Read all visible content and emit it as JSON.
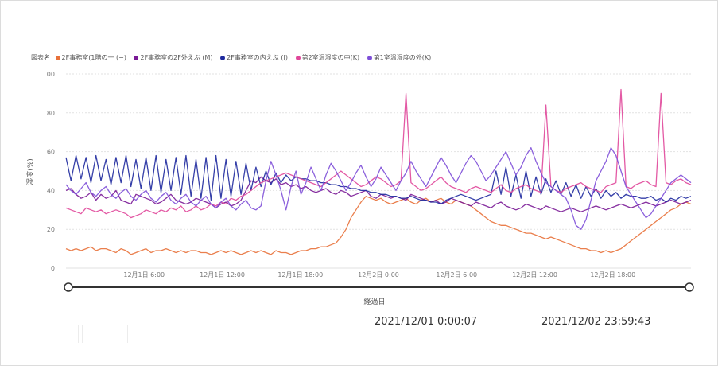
{
  "legend": {
    "title": "図表名",
    "items": [
      {
        "label": "2F事務室(1階の一 (−)",
        "color": "#e8713a"
      },
      {
        "label": "2F事務室の2F外えぶ (M)",
        "color": "#7a1a96"
      },
      {
        "label": "2F事務室の内えぶ (I)",
        "color": "#1f2a9e"
      },
      {
        "label": "第2室温湿度の中(K)",
        "color": "#e0479a"
      },
      {
        "label": "第1室温湿度の外(K)",
        "color": "#7e4fd8"
      }
    ]
  },
  "slider": {
    "start_label": "2021/12/01 0:00:07",
    "end_label": "2021/12/02 23:59:43",
    "axis_title": "経過日"
  },
  "chart_data": {
    "type": "line",
    "title": "",
    "xlabel": "経過日",
    "ylabel": "湿度(%)",
    "ylim": [
      0,
      100
    ],
    "y_ticks": [
      0,
      20,
      40,
      60,
      80,
      100
    ],
    "x_ticks": [
      "12月1日 6:00",
      "12月1日 12:00",
      "12月1日 18:00",
      "12月2日 0:00",
      "12月2日 6:00",
      "12月2日 12:00",
      "12月2日 18:00"
    ],
    "x_tick_positions_hours": [
      6,
      12,
      18,
      24,
      30,
      36,
      42
    ],
    "xlim_hours": [
      0,
      48
    ],
    "grid": true,
    "series": [
      {
        "name": "2F事務室(1階の一 (−)",
        "color": "#e8713a",
        "values": [
          10,
          9,
          10,
          9,
          10,
          11,
          9,
          10,
          10,
          9,
          8,
          10,
          9,
          7,
          8,
          9,
          10,
          8,
          9,
          9,
          10,
          9,
          8,
          9,
          8,
          9,
          9,
          8,
          8,
          7,
          8,
          9,
          8,
          9,
          8,
          7,
          8,
          9,
          8,
          9,
          8,
          7,
          9,
          8,
          8,
          7,
          8,
          9,
          9,
          10,
          10,
          11,
          11,
          12,
          13,
          16,
          20,
          26,
          30,
          34,
          37,
          36,
          35,
          36,
          34,
          33,
          34,
          35,
          36,
          34,
          33,
          35,
          36,
          34,
          35,
          36,
          34,
          33,
          35,
          34,
          33,
          32,
          30,
          28,
          26,
          24,
          23,
          22,
          22,
          21,
          20,
          19,
          18,
          18,
          17,
          16,
          15,
          16,
          15,
          14,
          13,
          12,
          11,
          10,
          10,
          9,
          9,
          8,
          9,
          8,
          9,
          10,
          12,
          14,
          16,
          18,
          20,
          22,
          24,
          26,
          28,
          30,
          31,
          33,
          34,
          33
        ]
      },
      {
        "name": "2F事務室の2F外えぶ (M)",
        "color": "#7a1a96",
        "values": [
          40,
          41,
          38,
          36,
          37,
          39,
          35,
          38,
          36,
          37,
          40,
          35,
          34,
          33,
          38,
          37,
          36,
          35,
          33,
          34,
          36,
          38,
          35,
          34,
          33,
          34,
          36,
          35,
          34,
          33,
          31,
          33,
          34,
          32,
          33,
          35,
          40,
          45,
          44,
          47,
          45,
          44,
          46,
          43,
          44,
          42,
          43,
          41,
          42,
          40,
          39,
          40,
          41,
          39,
          38,
          40,
          39,
          37,
          38,
          39,
          40,
          37,
          36,
          38,
          37,
          36,
          37,
          36,
          35,
          38,
          37,
          36,
          35,
          34,
          35,
          33,
          34,
          36,
          35,
          34,
          33,
          32,
          34,
          33,
          32,
          31,
          33,
          34,
          32,
          31,
          30,
          31,
          33,
          32,
          31,
          30,
          32,
          31,
          30,
          29,
          30,
          31,
          30,
          29,
          30,
          31,
          32,
          31,
          30,
          31,
          32,
          33,
          32,
          31,
          32,
          33,
          34,
          33,
          32,
          33,
          34,
          35,
          34,
          33,
          34,
          35
        ]
      },
      {
        "name": "2F事務室の内えぶ (I)",
        "color": "#1f2a9e",
        "values": [
          57,
          45,
          58,
          46,
          57,
          44,
          58,
          45,
          56,
          43,
          57,
          44,
          58,
          42,
          56,
          41,
          57,
          40,
          58,
          39,
          56,
          40,
          57,
          38,
          58,
          37,
          56,
          36,
          57,
          35,
          58,
          36,
          56,
          37,
          55,
          38,
          54,
          40,
          52,
          42,
          50,
          43,
          49,
          44,
          48,
          45,
          47,
          46,
          46,
          45,
          45,
          44,
          44,
          43,
          43,
          42,
          42,
          41,
          41,
          40,
          40,
          39,
          39,
          38,
          38,
          37,
          37,
          36,
          36,
          37,
          36,
          35,
          35,
          34,
          34,
          33,
          35,
          36,
          37,
          38,
          37,
          36,
          35,
          36,
          37,
          38,
          50,
          38,
          52,
          37,
          48,
          36,
          50,
          37,
          47,
          38,
          46,
          39,
          45,
          38,
          44,
          37,
          43,
          36,
          42,
          37,
          41,
          36,
          40,
          37,
          39,
          36,
          38,
          37,
          37,
          36,
          36,
          37,
          35,
          36,
          34,
          36,
          35,
          37,
          36,
          37
        ]
      },
      {
        "name": "第2室温湿度の中(K)",
        "color": "#e0479a",
        "values": [
          31,
          30,
          29,
          28,
          31,
          30,
          29,
          30,
          28,
          29,
          30,
          29,
          28,
          26,
          27,
          28,
          30,
          29,
          28,
          30,
          29,
          31,
          30,
          32,
          29,
          30,
          32,
          30,
          31,
          33,
          32,
          34,
          33,
          36,
          35,
          37,
          38,
          40,
          42,
          44,
          45,
          46,
          47,
          48,
          49,
          48,
          47,
          46,
          45,
          44,
          43,
          42,
          44,
          46,
          48,
          50,
          48,
          46,
          44,
          42,
          43,
          45,
          47,
          46,
          44,
          42,
          43,
          45,
          90,
          44,
          42,
          40,
          41,
          43,
          45,
          47,
          44,
          42,
          41,
          40,
          39,
          41,
          42,
          41,
          40,
          39,
          41,
          43,
          40,
          39,
          41,
          42,
          43,
          41,
          40,
          39,
          84,
          42,
          40,
          39,
          41,
          42,
          43,
          44,
          42,
          41,
          40,
          39,
          42,
          43,
          44,
          92,
          42,
          41,
          43,
          44,
          45,
          43,
          42,
          90,
          44,
          43,
          45,
          46,
          44,
          43
        ]
      },
      {
        "name": "第1室温湿度の外(K)",
        "color": "#7e4fd8",
        "values": [
          43,
          40,
          38,
          41,
          44,
          39,
          37,
          40,
          42,
          38,
          36,
          39,
          41,
          37,
          35,
          38,
          40,
          36,
          34,
          37,
          39,
          35,
          33,
          36,
          38,
          34,
          32,
          35,
          37,
          33,
          31,
          34,
          36,
          32,
          30,
          33,
          35,
          31,
          30,
          32,
          45,
          55,
          48,
          40,
          30,
          42,
          50,
          38,
          44,
          52,
          46,
          40,
          48,
          54,
          50,
          45,
          40,
          44,
          49,
          53,
          47,
          42,
          46,
          52,
          48,
          44,
          40,
          45,
          49,
          55,
          50,
          46,
          42,
          47,
          52,
          57,
          53,
          48,
          44,
          49,
          54,
          58,
          55,
          50,
          45,
          48,
          52,
          56,
          60,
          54,
          48,
          52,
          58,
          62,
          55,
          49,
          44,
          42,
          40,
          38,
          36,
          30,
          22,
          20,
          25,
          35,
          45,
          50,
          55,
          62,
          58,
          50,
          42,
          38,
          34,
          30,
          26,
          28,
          32,
          36,
          40,
          44,
          46,
          48,
          46,
          44
        ]
      }
    ]
  }
}
